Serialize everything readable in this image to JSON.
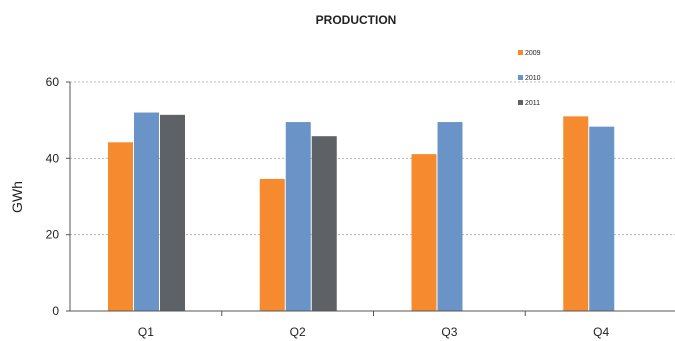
{
  "chart_data": {
    "type": "bar",
    "title": "PRODUCTION",
    "xlabel": "",
    "ylabel": "GWh",
    "categories": [
      "Q1",
      "Q2",
      "Q3",
      "Q4"
    ],
    "yticks": [
      0,
      20,
      40,
      60
    ],
    "ylim": [
      0,
      60
    ],
    "grid": true,
    "legend_position": "top-right",
    "series": [
      {
        "name": "2009",
        "color": "#f58a2e",
        "values": [
          44.2,
          34.6,
          41.1,
          51.0
        ]
      },
      {
        "name": "2010",
        "color": "#6a93c8",
        "values": [
          52.0,
          49.5,
          49.5,
          48.3
        ]
      },
      {
        "name": "2011",
        "color": "#5e6266",
        "values": [
          51.4,
          45.8,
          null,
          null
        ]
      }
    ]
  }
}
